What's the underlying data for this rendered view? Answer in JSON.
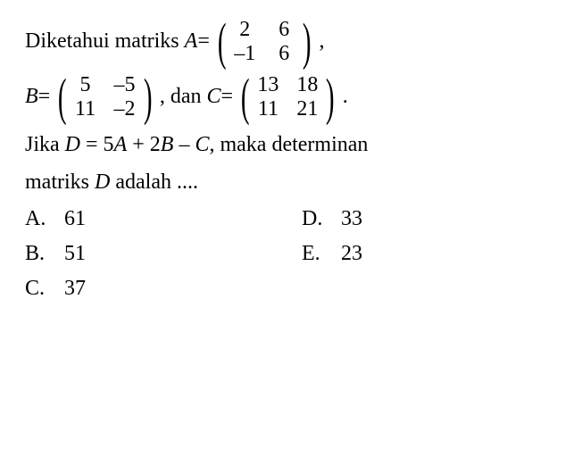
{
  "fontsize": 24,
  "color": "#000000",
  "background_color": "#ffffff",
  "matrix_paren_fontsize": 58,
  "intro_text": "Diketahui matriks ",
  "matrix_A": {
    "name": "A",
    "equals": " = ",
    "rows": [
      [
        "2",
        "6"
      ],
      [
        "–1",
        "6"
      ]
    ],
    "trailing": ","
  },
  "matrix_B": {
    "name": "B",
    "equals": " = ",
    "rows": [
      [
        "5",
        "–5"
      ],
      [
        "11",
        "–2"
      ]
    ],
    "trailing": ", dan "
  },
  "matrix_C": {
    "name": "C",
    "equals": " = ",
    "rows": [
      [
        "13",
        "18"
      ],
      [
        "11",
        "21"
      ]
    ],
    "trailing": "."
  },
  "question_line1_pre": "Jika ",
  "question_eq_D": "D",
  "question_eq_mid": " = 5",
  "question_eq_A": "A",
  "question_eq_mid2": " + 2",
  "question_eq_B": "B",
  "question_eq_mid3": " – ",
  "question_eq_C": "C",
  "question_line1_post": ", maka determinan",
  "question_line2_pre": "matriks ",
  "question_line2_D": "D",
  "question_line2_post": " adalah ....",
  "options": {
    "left": [
      {
        "letter": "A.",
        "value": "61"
      },
      {
        "letter": "B.",
        "value": "51"
      },
      {
        "letter": "C.",
        "value": "37"
      }
    ],
    "right": [
      {
        "letter": "D.",
        "value": "33"
      },
      {
        "letter": "E.",
        "value": "23"
      }
    ]
  }
}
